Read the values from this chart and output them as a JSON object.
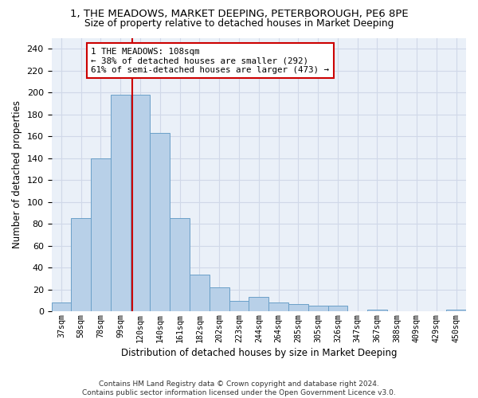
{
  "title1": "1, THE MEADOWS, MARKET DEEPING, PETERBOROUGH, PE6 8PE",
  "title2": "Size of property relative to detached houses in Market Deeping",
  "xlabel": "Distribution of detached houses by size in Market Deeping",
  "ylabel": "Number of detached properties",
  "bar_color": "#b8d0e8",
  "bar_edge_color": "#6aa0c8",
  "categories": [
    "37sqm",
    "58sqm",
    "78sqm",
    "99sqm",
    "120sqm",
    "140sqm",
    "161sqm",
    "182sqm",
    "202sqm",
    "223sqm",
    "244sqm",
    "264sqm",
    "285sqm",
    "305sqm",
    "326sqm",
    "347sqm",
    "367sqm",
    "388sqm",
    "409sqm",
    "429sqm",
    "450sqm"
  ],
  "values": [
    8,
    85,
    140,
    198,
    198,
    163,
    85,
    34,
    22,
    10,
    13,
    8,
    7,
    5,
    5,
    0,
    2,
    0,
    0,
    0,
    2
  ],
  "ylim": [
    0,
    250
  ],
  "yticks": [
    0,
    20,
    40,
    60,
    80,
    100,
    120,
    140,
    160,
    180,
    200,
    220,
    240
  ],
  "annotation_text": "1 THE MEADOWS: 108sqm\n← 38% of detached houses are smaller (292)\n61% of semi-detached houses are larger (473) →",
  "vline_x": 3.6,
  "annotation_box_facecolor": "#ffffff",
  "annotation_box_edgecolor": "#cc0000",
  "footer_text": "Contains HM Land Registry data © Crown copyright and database right 2024.\nContains public sector information licensed under the Open Government Licence v3.0.",
  "grid_color": "#d0d8e8",
  "background_color": "#eaf0f8"
}
